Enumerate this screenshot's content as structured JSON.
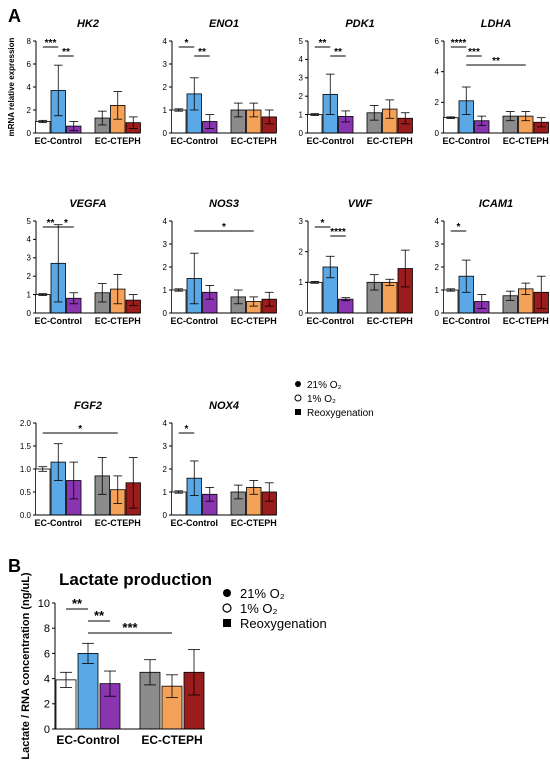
{
  "panel_labels": [
    "A",
    "B"
  ],
  "legend": [
    {
      "marker": "filled-circle",
      "label": "21% O₂"
    },
    {
      "marker": "open-circle",
      "label": "1% O₂"
    },
    {
      "marker": "filled-square",
      "label": "Reoxygenation"
    }
  ],
  "colors": {
    "ec_control": [
      "#ffffff",
      "#5aa9e6",
      "#8a35b0"
    ],
    "ec_cteph": [
      "#8c8c8c",
      "#f4a259",
      "#9b1c1c"
    ],
    "axis": "#000000"
  },
  "chart_data": [
    {
      "type": "bar",
      "title": "HK2",
      "ylabel": "mRNA relative expression",
      "ylim": [
        0,
        8
      ],
      "yticks": [
        "0",
        "2",
        "4",
        "6",
        "8"
      ],
      "groups": [
        "EC-Control",
        "EC-CTEPH"
      ],
      "conditions": [
        "21% O₂",
        "1% O₂",
        "Reoxygenation"
      ],
      "means": [
        [
          1.0,
          3.7,
          0.6
        ],
        [
          1.3,
          2.4,
          0.9
        ]
      ],
      "errors": [
        [
          0.1,
          2.2,
          0.4
        ],
        [
          0.6,
          1.2,
          0.5
        ]
      ],
      "significance": [
        {
          "label": "***",
          "from": [
            0,
            0
          ],
          "to": [
            0,
            1
          ]
        },
        {
          "label": "**",
          "from": [
            0,
            1
          ],
          "to": [
            0,
            2
          ]
        }
      ]
    },
    {
      "type": "bar",
      "title": "ENO1",
      "ylabel": "",
      "ylim": [
        0,
        4
      ],
      "yticks": [
        "0",
        "1",
        "2",
        "3",
        "4"
      ],
      "groups": [
        "EC-Control",
        "EC-CTEPH"
      ],
      "conditions": [
        "21% O₂",
        "1% O₂",
        "Reoxygenation"
      ],
      "means": [
        [
          1.0,
          1.7,
          0.5
        ],
        [
          1.0,
          1.0,
          0.7
        ]
      ],
      "errors": [
        [
          0.05,
          0.7,
          0.3
        ],
        [
          0.3,
          0.3,
          0.3
        ]
      ],
      "significance": [
        {
          "label": "*",
          "from": [
            0,
            0
          ],
          "to": [
            0,
            1
          ]
        },
        {
          "label": "**",
          "from": [
            0,
            1
          ],
          "to": [
            0,
            2
          ]
        }
      ]
    },
    {
      "type": "bar",
      "title": "PDK1",
      "ylabel": "",
      "ylim": [
        0,
        5
      ],
      "yticks": [
        "0",
        "1",
        "2",
        "3",
        "4",
        "5"
      ],
      "groups": [
        "EC-Control",
        "EC-CTEPH"
      ],
      "conditions": [
        "21% O₂",
        "1% O₂",
        "Reoxygenation"
      ],
      "means": [
        [
          1.0,
          2.1,
          0.9
        ],
        [
          1.1,
          1.3,
          0.8
        ]
      ],
      "errors": [
        [
          0.05,
          1.1,
          0.3
        ],
        [
          0.4,
          0.5,
          0.3
        ]
      ],
      "significance": [
        {
          "label": "**",
          "from": [
            0,
            0
          ],
          "to": [
            0,
            1
          ]
        },
        {
          "label": "**",
          "from": [
            0,
            1
          ],
          "to": [
            0,
            2
          ]
        }
      ]
    },
    {
      "type": "bar",
      "title": "LDHA",
      "ylabel": "",
      "ylim": [
        0,
        6
      ],
      "yticks": [
        "0",
        "2",
        "4",
        "6"
      ],
      "groups": [
        "EC-Control",
        "EC-CTEPH"
      ],
      "conditions": [
        "21% O₂",
        "1% O₂",
        "Reoxygenation"
      ],
      "means": [
        [
          1.0,
          2.1,
          0.8
        ],
        [
          1.1,
          1.1,
          0.7
        ]
      ],
      "errors": [
        [
          0.05,
          0.9,
          0.3
        ],
        [
          0.3,
          0.3,
          0.3
        ]
      ],
      "significance": [
        {
          "label": "****",
          "from": [
            0,
            0
          ],
          "to": [
            0,
            1
          ]
        },
        {
          "label": "***",
          "from": [
            0,
            1
          ],
          "to": [
            0,
            2
          ]
        },
        {
          "label": "**",
          "from": [
            0,
            1
          ],
          "to": [
            1,
            1
          ]
        }
      ]
    },
    {
      "type": "bar",
      "title": "VEGFA",
      "ylabel": "",
      "ylim": [
        0,
        5
      ],
      "yticks": [
        "0",
        "1",
        "2",
        "3",
        "4",
        "5"
      ],
      "groups": [
        "EC-Control",
        "EC-CTEPH"
      ],
      "conditions": [
        "21% O₂",
        "1% O₂",
        "Reoxygenation"
      ],
      "means": [
        [
          1.0,
          2.7,
          0.8
        ],
        [
          1.1,
          1.3,
          0.7
        ]
      ],
      "errors": [
        [
          0.05,
          2.1,
          0.3
        ],
        [
          0.5,
          0.8,
          0.3
        ]
      ],
      "significance": [
        {
          "label": "**",
          "from": [
            0,
            0
          ],
          "to": [
            0,
            1
          ]
        },
        {
          "label": "*",
          "from": [
            0,
            1
          ],
          "to": [
            0,
            2
          ]
        }
      ]
    },
    {
      "type": "bar",
      "title": "NOS3",
      "ylabel": "",
      "ylim": [
        0,
        4
      ],
      "yticks": [
        "0",
        "1",
        "2",
        "3",
        "4"
      ],
      "groups": [
        "EC-Control",
        "EC-CTEPH"
      ],
      "conditions": [
        "21% O₂",
        "1% O₂",
        "Reoxygenation"
      ],
      "means": [
        [
          1.0,
          1.5,
          0.9
        ],
        [
          0.7,
          0.5,
          0.6
        ]
      ],
      "errors": [
        [
          0.05,
          1.1,
          0.3
        ],
        [
          0.3,
          0.2,
          0.3
        ]
      ],
      "significance": [
        {
          "label": "*",
          "from": [
            0,
            1
          ],
          "to": [
            1,
            1
          ]
        }
      ]
    },
    {
      "type": "bar",
      "title": "VWF",
      "ylabel": "",
      "ylim": [
        0,
        3
      ],
      "yticks": [
        "0",
        "1",
        "2",
        "3"
      ],
      "groups": [
        "EC-Control",
        "EC-CTEPH"
      ],
      "conditions": [
        "21% O₂",
        "1% O₂",
        "Reoxygenation"
      ],
      "means": [
        [
          1.0,
          1.5,
          0.45
        ],
        [
          1.0,
          1.0,
          1.45
        ]
      ],
      "errors": [
        [
          0.03,
          0.35,
          0.05
        ],
        [
          0.25,
          0.1,
          0.6
        ]
      ],
      "significance": [
        {
          "label": "*",
          "from": [
            0,
            0
          ],
          "to": [
            0,
            1
          ]
        },
        {
          "label": "****",
          "from": [
            0,
            1
          ],
          "to": [
            0,
            2
          ]
        }
      ]
    },
    {
      "type": "bar",
      "title": "ICAM1",
      "ylabel": "",
      "ylim": [
        0,
        4
      ],
      "yticks": [
        "0",
        "1",
        "2",
        "3",
        "4"
      ],
      "groups": [
        "EC-Control",
        "EC-CTEPH"
      ],
      "conditions": [
        "21% O₂",
        "1% O₂",
        "Reoxygenation"
      ],
      "means": [
        [
          1.0,
          1.6,
          0.5
        ],
        [
          0.75,
          1.05,
          0.9
        ]
      ],
      "errors": [
        [
          0.05,
          0.7,
          0.3
        ],
        [
          0.2,
          0.25,
          0.7
        ]
      ],
      "significance": [
        {
          "label": "*",
          "from": [
            0,
            0
          ],
          "to": [
            0,
            1
          ]
        }
      ]
    },
    {
      "type": "bar",
      "title": "FGF2",
      "ylabel": "",
      "ylim": [
        0,
        2.0
      ],
      "yticks": [
        "0.0",
        "0.5",
        "1.0",
        "1.5",
        "2.0"
      ],
      "groups": [
        "EC-Control",
        "EC-CTEPH"
      ],
      "conditions": [
        "21% O₂",
        "1% O₂",
        "Reoxygenation"
      ],
      "means": [
        [
          1.0,
          1.15,
          0.75
        ],
        [
          0.85,
          0.55,
          0.7
        ]
      ],
      "errors": [
        [
          0.05,
          0.4,
          0.4
        ],
        [
          0.4,
          0.3,
          0.55
        ]
      ],
      "significance": [
        {
          "label": "*",
          "from": [
            0,
            0
          ],
          "to": [
            1,
            1
          ]
        }
      ]
    },
    {
      "type": "bar",
      "title": "NOX4",
      "ylabel": "",
      "ylim": [
        0,
        4
      ],
      "yticks": [
        "0",
        "1",
        "2",
        "3",
        "4"
      ],
      "groups": [
        "EC-Control",
        "EC-CTEPH"
      ],
      "conditions": [
        "21% O₂",
        "1% O₂",
        "Reoxygenation"
      ],
      "means": [
        [
          1.0,
          1.6,
          0.9
        ],
        [
          1.0,
          1.2,
          1.0
        ]
      ],
      "errors": [
        [
          0.05,
          0.75,
          0.3
        ],
        [
          0.3,
          0.3,
          0.4
        ]
      ],
      "significance": [
        {
          "label": "*",
          "from": [
            0,
            0
          ],
          "to": [
            0,
            1
          ]
        }
      ]
    },
    {
      "type": "bar",
      "title": "Lactate production",
      "ylabel": "Lactate / RNA concentration (ng/uL)",
      "ylim": [
        0,
        10
      ],
      "yticks": [
        "0",
        "2",
        "4",
        "6",
        "8",
        "10"
      ],
      "groups": [
        "EC-Control",
        "EC-CTEPH"
      ],
      "conditions": [
        "21% O₂",
        "1% O₂",
        "Reoxygenation"
      ],
      "means": [
        [
          3.9,
          6.0,
          3.6
        ],
        [
          4.5,
          3.4,
          4.5
        ]
      ],
      "errors": [
        [
          0.6,
          0.8,
          1.0
        ],
        [
          1.0,
          0.9,
          1.8
        ]
      ],
      "significance": [
        {
          "label": "**",
          "from": [
            0,
            0
          ],
          "to": [
            0,
            1
          ]
        },
        {
          "label": "**",
          "from": [
            0,
            1
          ],
          "to": [
            0,
            2
          ]
        },
        {
          "label": "***",
          "from": [
            0,
            1
          ],
          "to": [
            1,
            1
          ]
        }
      ]
    }
  ]
}
